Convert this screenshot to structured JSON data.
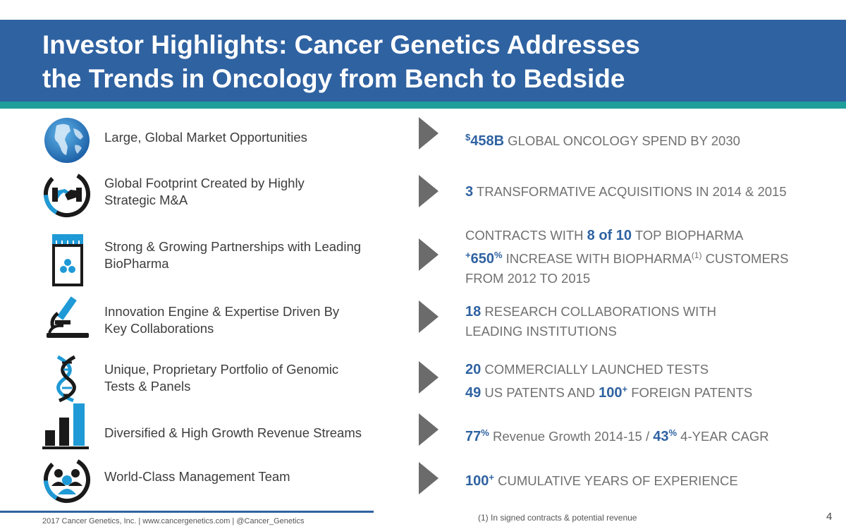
{
  "title": {
    "line1": "Investor Highlights: Cancer Genetics Addresses",
    "line2": "the Trends in Oncology from Bench to Bedside"
  },
  "colors": {
    "header": "#2f62a1",
    "accent": "#1f9e9a",
    "highlight": "#2f62a1",
    "text_gray": "#707070"
  },
  "rows": [
    {
      "icon": "globe-icon",
      "left": [
        "Large, Global Market Opportunities"
      ],
      "right": {
        "l1": {
          "sup": "$",
          "hl": "458B",
          "text": " GLOBAL ONCOLOGY SPEND BY 2030"
        }
      }
    },
    {
      "icon": "handshake-icon",
      "left": [
        "Global Footprint Created by Highly",
        "Strategic M&A"
      ],
      "right": {
        "l1": {
          "hl": "3",
          "text": " TRANSFORMATIVE ACQUISITIONS IN 2014 & 2015"
        }
      }
    },
    {
      "icon": "lab-jar-icon",
      "left": [
        "Strong & Growing Partnerships with Leading",
        "BioPharma"
      ],
      "right": {
        "l1": {
          "a": "CONTRACTS WITH ",
          "hl": "8 of 10",
          "b": " TOP BIOPHARMA"
        },
        "l2": {
          "sup1": "+",
          "hl": "650",
          "sup2": "%",
          "a": " INCREASE WITH BIOPHARMA",
          "sup3": "(1)",
          "b": " CUSTOMERS"
        },
        "l3": {
          "text": "FROM 2012 TO 2015"
        }
      }
    },
    {
      "icon": "microscope-icon",
      "left": [
        "Innovation Engine & Expertise Driven By",
        "Key Collaborations"
      ],
      "right": {
        "l1": {
          "hl": "18",
          "text": " RESEARCH COLLABORATIONS WITH"
        },
        "l2": {
          "text": "LEADING INSTITUTIONS"
        }
      }
    },
    {
      "icon": "dna-icon",
      "left": [
        "Unique, Proprietary Portfolio of Genomic",
        "Tests & Panels"
      ],
      "right": {
        "l1": {
          "hl": "20",
          "text": " COMMERCIALLY LAUNCHED TESTS"
        },
        "l2": {
          "hl1": "49",
          "a": " US PATENTS AND ",
          "hl2": "100",
          "sup": "+",
          "b": " FOREIGN PATENTS"
        }
      }
    },
    {
      "icon": "bar-chart-icon",
      "left": [
        "Diversified & High Growth Revenue Streams"
      ],
      "right": {
        "l1": {
          "hl1": "77",
          "sup1": "%",
          "a": " Revenue Growth 2014-15 / ",
          "hl2": "43",
          "sup2": "%",
          "b": " 4-YEAR CAGR"
        }
      }
    },
    {
      "icon": "team-icon",
      "left": [
        "World-Class Management Team"
      ],
      "right": {
        "l1": {
          "hl": "100",
          "sup": "+",
          "text": " CUMULATIVE YEARS OF EXPERIENCE"
        }
      }
    }
  ],
  "footer": {
    "left": "2017 Cancer Genetics, Inc.  |  www.cancergenetics.com  |  @Cancer_Genetics",
    "note": "(1) In signed contracts & potential revenue",
    "page": "4"
  }
}
